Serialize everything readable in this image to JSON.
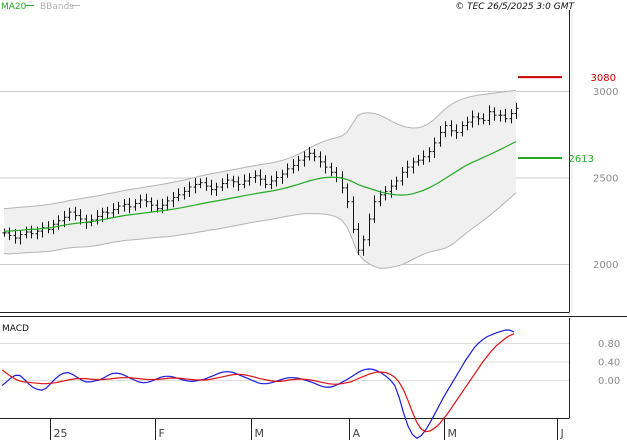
{
  "header": {
    "ma_label": "MA20",
    "bbands_label": "BBands",
    "copyright": "© TEC 26/5/2025 3:0 GMT"
  },
  "macd_label": "MACD",
  "colors": {
    "ma": "#22aa22",
    "band_line": "#b4b4b4",
    "band_fill": "#f0f0f0",
    "bars": "#111111",
    "grid": "#cccccc",
    "macd": "#1a1add",
    "signal": "#dd1111",
    "resistance": "#cc0000",
    "support": "#22aa22"
  },
  "chart_data": [
    {
      "type": "line",
      "subtype": "ohlc-bars",
      "title": "",
      "x_ticks": [
        "25",
        "F",
        "M",
        "A",
        "M",
        "J"
      ],
      "y_ticks": [
        "3000",
        "2500",
        "2000"
      ],
      "ylim": [
        1720,
        3600
      ],
      "grid": true,
      "levels": [
        {
          "label": "3080",
          "value": 3080,
          "color": "#cc0000"
        },
        {
          "label": "2613",
          "value": 2613,
          "color": "#22aa22"
        }
      ],
      "close": [
        2180,
        2165,
        2150,
        2170,
        2185,
        2175,
        2190,
        2210,
        2200,
        2230,
        2250,
        2270,
        2300,
        2280,
        2260,
        2240,
        2255,
        2275,
        2300,
        2295,
        2315,
        2335,
        2345,
        2330,
        2350,
        2370,
        2360,
        2340,
        2320,
        2340,
        2365,
        2385,
        2400,
        2420,
        2445,
        2460,
        2470,
        2450,
        2430,
        2445,
        2465,
        2485,
        2475,
        2460,
        2480,
        2500,
        2510,
        2490,
        2460,
        2480,
        2500,
        2520,
        2550,
        2570,
        2600,
        2620,
        2640,
        2620,
        2590,
        2560,
        2530,
        2500,
        2440,
        2360,
        2200,
        2080,
        2140,
        2260,
        2360,
        2400,
        2420,
        2450,
        2480,
        2530,
        2560,
        2590,
        2600,
        2620,
        2650,
        2700,
        2760,
        2800,
        2770,
        2760,
        2800,
        2820,
        2850,
        2840,
        2830,
        2880,
        2860,
        2860,
        2840,
        2870,
        2900
      ],
      "ma20": [
        2190,
        2190,
        2193,
        2195,
        2198,
        2200,
        2202,
        2205,
        2208,
        2212,
        2218,
        2224,
        2230,
        2234,
        2238,
        2241,
        2245,
        2250,
        2256,
        2262,
        2268,
        2274,
        2280,
        2284,
        2288,
        2292,
        2296,
        2300,
        2304,
        2308,
        2312,
        2317,
        2322,
        2328,
        2334,
        2340,
        2347,
        2353,
        2359,
        2364,
        2370,
        2376,
        2382,
        2388,
        2394,
        2400,
        2406,
        2411,
        2416,
        2421,
        2427,
        2434,
        2442,
        2451,
        2460,
        2470,
        2480,
        2488,
        2495,
        2500,
        2502,
        2501,
        2497,
        2488,
        2476,
        2460,
        2448,
        2438,
        2428,
        2418,
        2410,
        2404,
        2400,
        2398,
        2400,
        2406,
        2415,
        2426,
        2440,
        2456,
        2474,
        2494,
        2514,
        2534,
        2554,
        2572,
        2588,
        2602,
        2616,
        2630,
        2645,
        2660,
        2676,
        2692,
        2708
      ],
      "bb_upper": [
        2320,
        2322,
        2325,
        2328,
        2330,
        2333,
        2336,
        2340,
        2344,
        2348,
        2354,
        2360,
        2367,
        2372,
        2378,
        2383,
        2388,
        2393,
        2399,
        2405,
        2411,
        2418,
        2425,
        2430,
        2435,
        2440,
        2445,
        2450,
        2455,
        2460,
        2466,
        2472,
        2478,
        2485,
        2492,
        2500,
        2508,
        2515,
        2521,
        2527,
        2533,
        2539,
        2545,
        2551,
        2557,
        2563,
        2569,
        2574,
        2579,
        2584,
        2590,
        2598,
        2608,
        2620,
        2634,
        2650,
        2668,
        2685,
        2700,
        2712,
        2722,
        2730,
        2740,
        2762,
        2812,
        2860,
        2872,
        2874,
        2870,
        2860,
        2845,
        2828,
        2812,
        2800,
        2790,
        2786,
        2788,
        2796,
        2812,
        2836,
        2866,
        2896,
        2920,
        2938,
        2952,
        2962,
        2970,
        2976,
        2980,
        2984,
        2988,
        2992,
        2996,
        3000,
        3004
      ],
      "bb_lower": [
        2060,
        2058,
        2061,
        2062,
        2066,
        2067,
        2068,
        2070,
        2072,
        2076,
        2082,
        2088,
        2093,
        2096,
        2098,
        2099,
        2102,
        2107,
        2113,
        2119,
        2125,
        2130,
        2135,
        2138,
        2141,
        2144,
        2147,
        2150,
        2153,
        2156,
        2158,
        2162,
        2166,
        2171,
        2176,
        2180,
        2186,
        2191,
        2197,
        2201,
        2207,
        2213,
        2219,
        2225,
        2231,
        2237,
        2243,
        2248,
        2253,
        2258,
        2264,
        2270,
        2276,
        2282,
        2286,
        2290,
        2292,
        2291,
        2290,
        2288,
        2282,
        2272,
        2254,
        2214,
        2140,
        2060,
        2024,
        2002,
        1986,
        1976,
        1975,
        1980,
        1988,
        1996,
        2010,
        2026,
        2042,
        2056,
        2068,
        2076,
        2082,
        2092,
        2108,
        2130,
        2156,
        2182,
        2206,
        2228,
        2252,
        2276,
        2302,
        2328,
        2356,
        2384,
        2412
      ]
    },
    {
      "type": "line",
      "title": "MACD",
      "y_ticks": [
        "0.80",
        "0.40",
        "0.00"
      ],
      "ylim": [
        -1.6,
        1.6
      ],
      "series": [
        {
          "values": [
            -0.12,
            -0.04,
            0.04,
            0.1,
            0.1,
            0.02,
            -0.08,
            -0.16,
            -0.2,
            -0.22,
            -0.18,
            -0.08,
            0.02,
            0.1,
            0.15,
            0.16,
            0.12,
            0.06,
            0.0,
            -0.04,
            -0.04,
            -0.02,
            0.0,
            0.04,
            0.1,
            0.14,
            0.15,
            0.13,
            0.09,
            0.04,
            0.0,
            -0.04,
            -0.06,
            -0.05,
            -0.02,
            0.02,
            0.06,
            0.08,
            0.08,
            0.06,
            0.03,
            0.0,
            -0.02,
            -0.03,
            -0.02,
            0.0,
            0.02,
            0.06,
            0.1,
            0.14,
            0.17,
            0.18,
            0.17,
            0.14,
            0.1,
            0.06,
            0.02,
            -0.02,
            -0.06,
            -0.08,
            -0.08,
            -0.06,
            -0.03,
            0.0,
            0.03,
            0.05,
            0.05,
            0.04,
            0.02,
            -0.01,
            -0.04,
            -0.08,
            -0.12,
            -0.15,
            -0.16,
            -0.14,
            -0.1,
            -0.05,
            0.0,
            0.06,
            0.12,
            0.18,
            0.22,
            0.24,
            0.23,
            0.2,
            0.15,
            0.08,
            0.0,
            -0.12,
            -0.38,
            -0.72,
            -1.0,
            -1.18,
            -1.26,
            -1.2,
            -1.08,
            -0.92,
            -0.74,
            -0.56,
            -0.38,
            -0.22,
            -0.06,
            0.1,
            0.26,
            0.42,
            0.56,
            0.7,
            0.8,
            0.88,
            0.94,
            0.98,
            1.02,
            1.05,
            1.08,
            1.08,
            1.04
          ]
        },
        {
          "values": [
            0.22,
            0.15,
            0.08,
            0.02,
            -0.02,
            -0.04,
            -0.05,
            -0.06,
            -0.07,
            -0.08,
            -0.08,
            -0.07,
            -0.06,
            -0.04,
            -0.02,
            0.0,
            0.02,
            0.03,
            0.03,
            0.03,
            0.02,
            0.01,
            0.01,
            0.01,
            0.02,
            0.03,
            0.04,
            0.05,
            0.05,
            0.05,
            0.04,
            0.03,
            0.02,
            0.01,
            0.01,
            0.01,
            0.02,
            0.03,
            0.04,
            0.04,
            0.04,
            0.03,
            0.02,
            0.01,
            0.0,
            0.0,
            0.0,
            0.01,
            0.03,
            0.05,
            0.07,
            0.09,
            0.11,
            0.12,
            0.12,
            0.11,
            0.09,
            0.07,
            0.04,
            0.02,
            0.0,
            -0.02,
            -0.03,
            -0.03,
            -0.02,
            0.0,
            0.01,
            0.02,
            0.02,
            0.01,
            0.0,
            -0.02,
            -0.04,
            -0.06,
            -0.08,
            -0.09,
            -0.09,
            -0.08,
            -0.06,
            -0.04,
            0.0,
            0.04,
            0.08,
            0.12,
            0.15,
            0.17,
            0.17,
            0.16,
            0.12,
            0.06,
            -0.05,
            -0.22,
            -0.45,
            -0.7,
            -0.92,
            -1.06,
            -1.12,
            -1.1,
            -1.04,
            -0.96,
            -0.84,
            -0.72,
            -0.58,
            -0.44,
            -0.3,
            -0.16,
            -0.02,
            0.12,
            0.26,
            0.4,
            0.52,
            0.64,
            0.74,
            0.82,
            0.9,
            0.96,
            1.0
          ]
        }
      ]
    }
  ]
}
